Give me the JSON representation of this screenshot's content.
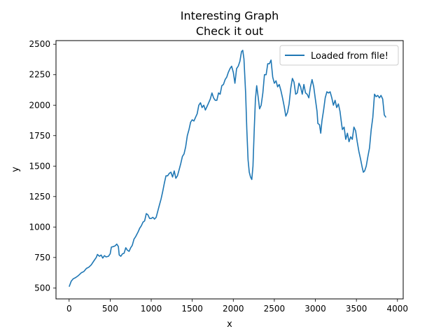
{
  "chart_data": {
    "type": "line",
    "title": "Interesting Graph",
    "subtitle": "Check it out",
    "xlabel": "x",
    "ylabel": "y",
    "xlim": [
      -160,
      4070
    ],
    "ylim": [
      410,
      2530
    ],
    "xticks": [
      0,
      500,
      1000,
      1500,
      2000,
      2500,
      3000,
      3500,
      4000
    ],
    "yticks": [
      500,
      750,
      1000,
      1250,
      1500,
      1750,
      2000,
      2250,
      2500
    ],
    "grid": false,
    "legend_position": "top-right",
    "series": [
      {
        "name": "Loaded from file!",
        "color": "#1f77b4",
        "points": [
          [
            0,
            510
          ],
          [
            25,
            555
          ],
          [
            50,
            575
          ],
          [
            80,
            585
          ],
          [
            110,
            600
          ],
          [
            150,
            625
          ],
          [
            180,
            635
          ],
          [
            210,
            660
          ],
          [
            240,
            670
          ],
          [
            270,
            690
          ],
          [
            300,
            720
          ],
          [
            330,
            750
          ],
          [
            345,
            775
          ],
          [
            370,
            760
          ],
          [
            390,
            770
          ],
          [
            410,
            745
          ],
          [
            430,
            765
          ],
          [
            450,
            755
          ],
          [
            480,
            760
          ],
          [
            500,
            780
          ],
          [
            515,
            835
          ],
          [
            540,
            840
          ],
          [
            560,
            845
          ],
          [
            580,
            860
          ],
          [
            600,
            840
          ],
          [
            610,
            770
          ],
          [
            630,
            760
          ],
          [
            650,
            780
          ],
          [
            670,
            785
          ],
          [
            690,
            830
          ],
          [
            710,
            810
          ],
          [
            730,
            800
          ],
          [
            750,
            830
          ],
          [
            770,
            850
          ],
          [
            790,
            900
          ],
          [
            810,
            920
          ],
          [
            840,
            960
          ],
          [
            860,
            990
          ],
          [
            880,
            1010
          ],
          [
            900,
            1040
          ],
          [
            920,
            1050
          ],
          [
            940,
            1110
          ],
          [
            960,
            1100
          ],
          [
            980,
            1070
          ],
          [
            1000,
            1070
          ],
          [
            1020,
            1080
          ],
          [
            1040,
            1065
          ],
          [
            1060,
            1080
          ],
          [
            1080,
            1130
          ],
          [
            1100,
            1180
          ],
          [
            1120,
            1230
          ],
          [
            1140,
            1290
          ],
          [
            1160,
            1360
          ],
          [
            1180,
            1420
          ],
          [
            1200,
            1420
          ],
          [
            1220,
            1440
          ],
          [
            1240,
            1450
          ],
          [
            1260,
            1410
          ],
          [
            1280,
            1460
          ],
          [
            1300,
            1400
          ],
          [
            1320,
            1420
          ],
          [
            1340,
            1470
          ],
          [
            1360,
            1520
          ],
          [
            1380,
            1580
          ],
          [
            1400,
            1600
          ],
          [
            1420,
            1660
          ],
          [
            1440,
            1750
          ],
          [
            1460,
            1800
          ],
          [
            1480,
            1860
          ],
          [
            1500,
            1880
          ],
          [
            1520,
            1870
          ],
          [
            1540,
            1900
          ],
          [
            1560,
            1930
          ],
          [
            1580,
            2000
          ],
          [
            1600,
            2020
          ],
          [
            1620,
            1980
          ],
          [
            1640,
            2000
          ],
          [
            1660,
            1960
          ],
          [
            1680,
            1990
          ],
          [
            1700,
            2020
          ],
          [
            1720,
            2050
          ],
          [
            1740,
            2100
          ],
          [
            1760,
            2060
          ],
          [
            1780,
            2040
          ],
          [
            1800,
            2040
          ],
          [
            1820,
            2100
          ],
          [
            1840,
            2090
          ],
          [
            1860,
            2160
          ],
          [
            1880,
            2170
          ],
          [
            1900,
            2210
          ],
          [
            1920,
            2230
          ],
          [
            1940,
            2270
          ],
          [
            1960,
            2300
          ],
          [
            1980,
            2320
          ],
          [
            2000,
            2270
          ],
          [
            2020,
            2180
          ],
          [
            2040,
            2300
          ],
          [
            2060,
            2320
          ],
          [
            2080,
            2360
          ],
          [
            2100,
            2440
          ],
          [
            2115,
            2450
          ],
          [
            2130,
            2380
          ],
          [
            2150,
            2100
          ],
          [
            2165,
            1800
          ],
          [
            2180,
            1550
          ],
          [
            2195,
            1450
          ],
          [
            2210,
            1410
          ],
          [
            2225,
            1390
          ],
          [
            2240,
            1500
          ],
          [
            2255,
            1800
          ],
          [
            2270,
            2050
          ],
          [
            2285,
            2160
          ],
          [
            2300,
            2080
          ],
          [
            2320,
            1970
          ],
          [
            2340,
            2000
          ],
          [
            2360,
            2100
          ],
          [
            2380,
            2250
          ],
          [
            2400,
            2250
          ],
          [
            2420,
            2340
          ],
          [
            2440,
            2340
          ],
          [
            2460,
            2370
          ],
          [
            2480,
            2230
          ],
          [
            2500,
            2180
          ],
          [
            2520,
            2200
          ],
          [
            2540,
            2150
          ],
          [
            2560,
            2170
          ],
          [
            2580,
            2120
          ],
          [
            2600,
            2060
          ],
          [
            2620,
            1990
          ],
          [
            2640,
            1910
          ],
          [
            2660,
            1940
          ],
          [
            2680,
            2010
          ],
          [
            2700,
            2140
          ],
          [
            2720,
            2220
          ],
          [
            2740,
            2190
          ],
          [
            2760,
            2090
          ],
          [
            2780,
            2100
          ],
          [
            2800,
            2180
          ],
          [
            2820,
            2150
          ],
          [
            2840,
            2090
          ],
          [
            2860,
            2170
          ],
          [
            2880,
            2100
          ],
          [
            2900,
            2090
          ],
          [
            2920,
            2060
          ],
          [
            2940,
            2150
          ],
          [
            2960,
            2210
          ],
          [
            2980,
            2150
          ],
          [
            3000,
            2050
          ],
          [
            3020,
            1950
          ],
          [
            3030,
            1850
          ],
          [
            3050,
            1840
          ],
          [
            3065,
            1770
          ],
          [
            3080,
            1870
          ],
          [
            3100,
            1960
          ],
          [
            3120,
            2060
          ],
          [
            3140,
            2110
          ],
          [
            3160,
            2100
          ],
          [
            3180,
            2110
          ],
          [
            3200,
            2060
          ],
          [
            3220,
            2000
          ],
          [
            3240,
            2040
          ],
          [
            3260,
            1980
          ],
          [
            3280,
            2010
          ],
          [
            3300,
            1950
          ],
          [
            3320,
            1840
          ],
          [
            3330,
            1800
          ],
          [
            3350,
            1820
          ],
          [
            3370,
            1720
          ],
          [
            3390,
            1770
          ],
          [
            3410,
            1700
          ],
          [
            3430,
            1740
          ],
          [
            3450,
            1720
          ],
          [
            3470,
            1820
          ],
          [
            3490,
            1790
          ],
          [
            3510,
            1700
          ],
          [
            3530,
            1620
          ],
          [
            3550,
            1560
          ],
          [
            3570,
            1490
          ],
          [
            3585,
            1450
          ],
          [
            3600,
            1460
          ],
          [
            3620,
            1500
          ],
          [
            3640,
            1580
          ],
          [
            3660,
            1650
          ],
          [
            3680,
            1800
          ],
          [
            3700,
            1900
          ],
          [
            3720,
            2090
          ],
          [
            3740,
            2070
          ],
          [
            3760,
            2080
          ],
          [
            3780,
            2060
          ],
          [
            3800,
            2080
          ],
          [
            3820,
            2050
          ],
          [
            3840,
            1920
          ],
          [
            3860,
            1900
          ]
        ]
      }
    ]
  }
}
